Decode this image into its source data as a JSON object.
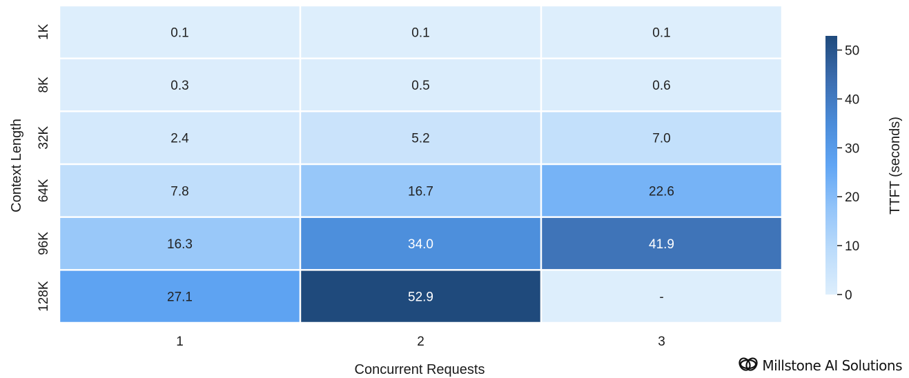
{
  "chart_data": {
    "type": "heatmap",
    "title": "",
    "xlabel": "Concurrent Requests",
    "ylabel": "Context Length",
    "colorbar_label": "TTFT (seconds)",
    "x_categories": [
      "1",
      "2",
      "3"
    ],
    "y_categories": [
      "1K",
      "8K",
      "32K",
      "64K",
      "96K",
      "128K"
    ],
    "values": [
      [
        0.1,
        0.1,
        0.1
      ],
      [
        0.3,
        0.5,
        0.6
      ],
      [
        2.4,
        5.2,
        7.0
      ],
      [
        7.8,
        16.7,
        22.6
      ],
      [
        16.3,
        34.0,
        41.9
      ],
      [
        27.1,
        52.9,
        null
      ]
    ],
    "missing_label": "-",
    "value_format": "one decimal",
    "color_scale": {
      "min": 0,
      "max": 52.9,
      "stops": [
        "#ddeefc",
        "#bcdcfb",
        "#93c4f9",
        "#60a5f4",
        "#4a8bd8",
        "#3b6cae",
        "#1f4a7c"
      ],
      "missing_color": "#ddeefc"
    },
    "colorbar_ticks": [
      0,
      10,
      20,
      30,
      40,
      50
    ]
  },
  "watermark": {
    "text": "Millstone AI Solutions",
    "icon": "intertwined-rings-logo-icon"
  }
}
